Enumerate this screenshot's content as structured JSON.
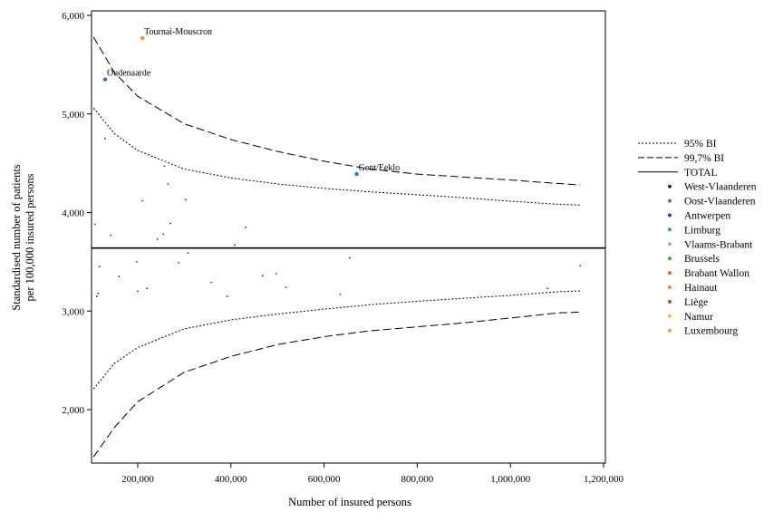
{
  "chart_data": {
    "type": "scatter",
    "title": "",
    "xlabel": "Number of insured persons",
    "ylabel_line1": "Standardised number of patients",
    "ylabel_line2": "per 100,000 insured persons",
    "xlim": [
      100000,
      1200000
    ],
    "ylim": [
      1500,
      6000
    ],
    "x_ticks": [
      200000,
      400000,
      600000,
      800000,
      1000000,
      1200000
    ],
    "x_tick_labels": [
      "200,000",
      "400,000",
      "600,000",
      "800,000",
      "1,000,000",
      "1,200,000"
    ],
    "y_ticks": [
      2000,
      3000,
      4000,
      5000,
      6000
    ],
    "y_tick_labels": [
      "2,000",
      "3,000",
      "4,000",
      "5,000",
      "6,000"
    ],
    "total": 3640,
    "grid": false,
    "legend_position": "right",
    "legend": [
      {
        "label": "95% BI",
        "kind": "line",
        "dash": "dotted"
      },
      {
        "label": "99,7% BI",
        "kind": "line",
        "dash": "dashed"
      },
      {
        "label": "TOTAL",
        "kind": "line",
        "dash": "solid"
      },
      {
        "label": "West-Vlaanderen",
        "kind": "dot",
        "color": "#1a237e"
      },
      {
        "label": "Oost-Vlaanderen",
        "kind": "dot",
        "color": "#3a6fd8"
      },
      {
        "label": "Antwerpen",
        "kind": "dot",
        "color": "#1f3fd8"
      },
      {
        "label": "Limburg",
        "kind": "dot",
        "color": "#2f8fe0"
      },
      {
        "label": "Vlaams-Brabant",
        "kind": "dot",
        "color": "#7fb8ea"
      },
      {
        "label": "Brussels",
        "kind": "dot",
        "color": "#2fae3f"
      },
      {
        "label": "Brabant Wallon",
        "kind": "dot",
        "color": "#e0622a"
      },
      {
        "label": "Hainaut",
        "kind": "dot",
        "color": "#f08a2a"
      },
      {
        "label": "Liège",
        "kind": "dot",
        "color": "#b5452a"
      },
      {
        "label": "Namur",
        "kind": "dot",
        "color": "#f5c21a"
      },
      {
        "label": "Luxembourg",
        "kind": "dot",
        "color": "#f5a02a"
      }
    ],
    "labeled_points": [
      {
        "label": "Tournai-Mouscron",
        "x": 210000,
        "y": 5770,
        "color": "#f08a2a"
      },
      {
        "label": "Oudenaarde",
        "x": 130000,
        "y": 5350,
        "color": "#3a6fd8"
      },
      {
        "label": "Gent/Eeklo",
        "x": 670000,
        "y": 4390,
        "color": "#3a6fd8"
      }
    ],
    "points": [
      [
        108000,
        3880
      ],
      [
        112000,
        3150
      ],
      [
        115000,
        3180
      ],
      [
        118000,
        3450
      ],
      [
        130000,
        4750
      ],
      [
        142000,
        3770
      ],
      [
        160000,
        3350
      ],
      [
        198000,
        3500
      ],
      [
        200000,
        3200
      ],
      [
        210000,
        4120
      ],
      [
        220000,
        3230
      ],
      [
        242000,
        3730
      ],
      [
        255000,
        3780
      ],
      [
        257000,
        4470
      ],
      [
        265000,
        4290
      ],
      [
        270000,
        3890
      ],
      [
        288000,
        3490
      ],
      [
        303000,
        4130
      ],
      [
        308000,
        3590
      ],
      [
        358000,
        3290
      ],
      [
        392000,
        3150
      ],
      [
        408000,
        3670
      ],
      [
        432000,
        3850
      ],
      [
        468000,
        3360
      ],
      [
        497000,
        3380
      ],
      [
        518000,
        3240
      ],
      [
        635000,
        3170
      ],
      [
        655000,
        3540
      ],
      [
        1080000,
        3230
      ],
      [
        1150000,
        3460
      ]
    ],
    "ci95_upper": [
      [
        105000,
        5060
      ],
      [
        150000,
        4800
      ],
      [
        200000,
        4630
      ],
      [
        300000,
        4440
      ],
      [
        400000,
        4350
      ],
      [
        500000,
        4290
      ],
      [
        600000,
        4245
      ],
      [
        700000,
        4210
      ],
      [
        800000,
        4180
      ],
      [
        900000,
        4150
      ],
      [
        1000000,
        4115
      ],
      [
        1100000,
        4085
      ],
      [
        1150000,
        4075
      ]
    ],
    "ci95_lower": [
      [
        105000,
        2210
      ],
      [
        150000,
        2470
      ],
      [
        200000,
        2630
      ],
      [
        300000,
        2820
      ],
      [
        400000,
        2910
      ],
      [
        500000,
        2970
      ],
      [
        600000,
        3020
      ],
      [
        700000,
        3065
      ],
      [
        800000,
        3100
      ],
      [
        900000,
        3130
      ],
      [
        1000000,
        3160
      ],
      [
        1100000,
        3195
      ],
      [
        1150000,
        3205
      ]
    ],
    "ci997_upper": [
      [
        105000,
        5780
      ],
      [
        150000,
        5420
      ],
      [
        200000,
        5180
      ],
      [
        300000,
        4900
      ],
      [
        400000,
        4740
      ],
      [
        500000,
        4620
      ],
      [
        600000,
        4520
      ],
      [
        700000,
        4440
      ],
      [
        800000,
        4390
      ],
      [
        900000,
        4360
      ],
      [
        1000000,
        4330
      ],
      [
        1100000,
        4295
      ],
      [
        1150000,
        4280
      ]
    ],
    "ci997_lower": [
      [
        105000,
        1520
      ],
      [
        150000,
        1820
      ],
      [
        200000,
        2080
      ],
      [
        300000,
        2380
      ],
      [
        400000,
        2540
      ],
      [
        500000,
        2660
      ],
      [
        600000,
        2740
      ],
      [
        700000,
        2800
      ],
      [
        800000,
        2840
      ],
      [
        900000,
        2880
      ],
      [
        1000000,
        2930
      ],
      [
        1100000,
        2980
      ],
      [
        1150000,
        2990
      ]
    ]
  }
}
